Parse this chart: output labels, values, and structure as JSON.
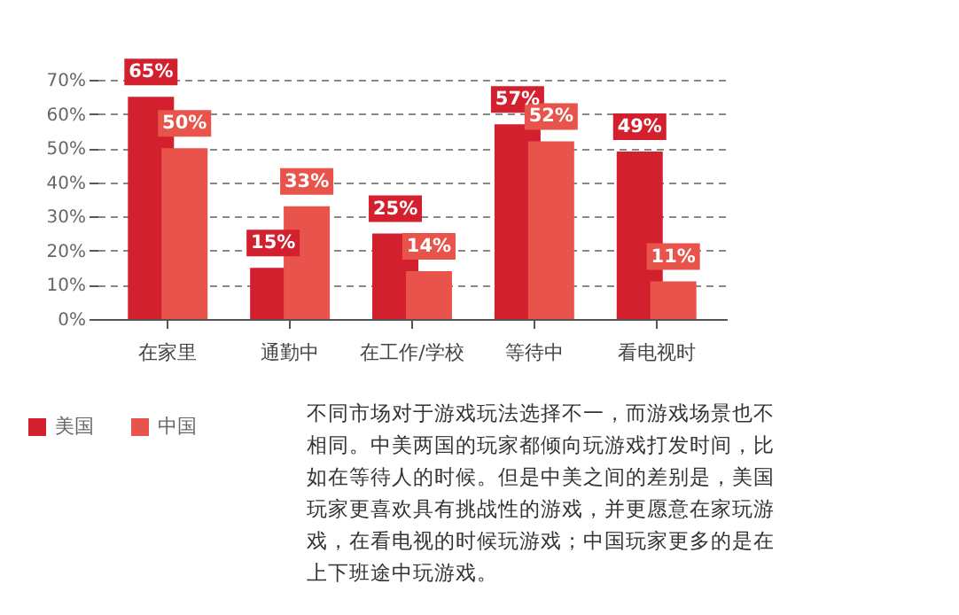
{
  "chart_data": {
    "type": "bar",
    "categories": [
      "在家里",
      "通勤中",
      "在工作/学校",
      "等待中",
      "看电视时"
    ],
    "series": [
      {
        "name": "美国",
        "color": "#d3202f",
        "values": [
          65,
          15,
          25,
          57,
          49
        ],
        "value_labels": [
          "65%",
          "15%",
          "25%",
          "57%",
          "49%"
        ]
      },
      {
        "name": "中国",
        "color": "#e8544b",
        "values": [
          50,
          33,
          14,
          52,
          11
        ],
        "value_labels": [
          "50%",
          "33%",
          "14%",
          "52%",
          "11%"
        ]
      }
    ],
    "ylim": [
      0,
      70
    ],
    "yticks": [
      {
        "value": 0,
        "label": "0%"
      },
      {
        "value": 10,
        "label": "10%"
      },
      {
        "value": 20,
        "label": "20%"
      },
      {
        "value": 30,
        "label": "30%"
      },
      {
        "value": 40,
        "label": "40%"
      },
      {
        "value": 50,
        "label": "50%"
      },
      {
        "value": 60,
        "label": "60%"
      },
      {
        "value": 70,
        "label": "70%"
      }
    ],
    "grid": "y",
    "legend": "bottom left",
    "annotations": [
      "不同市场对于游戏玩法选择不一，而游戏场景也不相同。中美两国的玩家都倾向玩游戏打发时间，比如在等待人的时候。但是中美之间的差别是，美国玩家更喜欢具有挑战性的游戏，并更愿意在家玩游戏，在看电视的时候玩游戏；中国玩家更多的是在上下班途中玩游戏。"
    ]
  }
}
